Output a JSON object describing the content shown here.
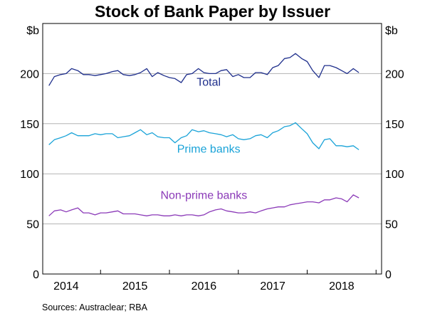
{
  "source": "Sources:   Austraclear; RBA",
  "chart_data": {
    "type": "line",
    "title": "Stock of Bank Paper by Issuer",
    "ylabel_left": "$b",
    "ylabel_right": "$b",
    "ylim": [
      0,
      250
    ],
    "yticks": [
      0,
      50,
      100,
      150,
      200
    ],
    "grid": "horizontal",
    "x_range": [
      2013.66,
      2018.58
    ],
    "xticks": [
      {
        "label": "2014",
        "x": 2014
      },
      {
        "label": "2015",
        "x": 2015
      },
      {
        "label": "2016",
        "x": 2016
      },
      {
        "label": "2017",
        "x": 2017
      },
      {
        "label": "2018",
        "x": 2018
      }
    ],
    "series": [
      {
        "name": "Total",
        "color": "#1f2f8c",
        "x": [
          2013.75,
          2013.83,
          2013.92,
          2014.0,
          2014.08,
          2014.17,
          2014.25,
          2014.33,
          2014.42,
          2014.5,
          2014.58,
          2014.67,
          2014.75,
          2014.83,
          2014.92,
          2015.0,
          2015.08,
          2015.17,
          2015.25,
          2015.33,
          2015.42,
          2015.5,
          2015.58,
          2015.67,
          2015.75,
          2015.83,
          2015.92,
          2016.0,
          2016.08,
          2016.17,
          2016.25,
          2016.33,
          2016.42,
          2016.5,
          2016.58,
          2016.67,
          2016.75,
          2016.83,
          2016.92,
          2017.0,
          2017.08,
          2017.17,
          2017.25,
          2017.33,
          2017.42,
          2017.5,
          2017.58,
          2017.67,
          2017.75,
          2017.83,
          2017.92,
          2018.0,
          2018.08,
          2018.17,
          2018.25
        ],
        "values": [
          188,
          197,
          199,
          200,
          205,
          203,
          199,
          199,
          198,
          199,
          200,
          202,
          203,
          199,
          198,
          199,
          201,
          205,
          197,
          201,
          198,
          196,
          195,
          191,
          199,
          200,
          205,
          201,
          200,
          200,
          203,
          204,
          197,
          199,
          196,
          196,
          201,
          201,
          199,
          206,
          208,
          215,
          216,
          220,
          215,
          212,
          203,
          196,
          208,
          208,
          206,
          203,
          200,
          205,
          201
        ]
      },
      {
        "name": "Prime banks",
        "color": "#1aa3d8",
        "x": [
          2013.75,
          2013.83,
          2013.92,
          2014.0,
          2014.08,
          2014.17,
          2014.25,
          2014.33,
          2014.42,
          2014.5,
          2014.58,
          2014.67,
          2014.75,
          2014.83,
          2014.92,
          2015.0,
          2015.08,
          2015.17,
          2015.25,
          2015.33,
          2015.42,
          2015.5,
          2015.58,
          2015.67,
          2015.75,
          2015.83,
          2015.92,
          2016.0,
          2016.08,
          2016.17,
          2016.25,
          2016.33,
          2016.42,
          2016.5,
          2016.58,
          2016.67,
          2016.75,
          2016.83,
          2016.92,
          2017.0,
          2017.08,
          2017.17,
          2017.25,
          2017.33,
          2017.42,
          2017.5,
          2017.58,
          2017.67,
          2017.75,
          2017.83,
          2017.92,
          2018.0,
          2018.08,
          2018.17,
          2018.25
        ],
        "values": [
          129,
          134,
          136,
          138,
          141,
          138,
          138,
          138,
          140,
          139,
          140,
          140,
          136,
          137,
          138,
          141,
          144,
          139,
          141,
          137,
          136,
          136,
          131,
          136,
          138,
          144,
          142,
          143,
          141,
          140,
          139,
          137,
          139,
          135,
          134,
          135,
          138,
          139,
          136,
          141,
          143,
          147,
          148,
          151,
          145,
          140,
          131,
          125,
          134,
          135,
          128,
          128,
          127,
          128,
          124
        ]
      },
      {
        "name": "Non-prime banks",
        "color": "#8b3ab8",
        "x": [
          2013.75,
          2013.83,
          2013.92,
          2014.0,
          2014.08,
          2014.17,
          2014.25,
          2014.33,
          2014.42,
          2014.5,
          2014.58,
          2014.67,
          2014.75,
          2014.83,
          2014.92,
          2015.0,
          2015.08,
          2015.17,
          2015.25,
          2015.33,
          2015.42,
          2015.5,
          2015.58,
          2015.67,
          2015.75,
          2015.83,
          2015.92,
          2016.0,
          2016.08,
          2016.17,
          2016.25,
          2016.33,
          2016.42,
          2016.5,
          2016.58,
          2016.67,
          2016.75,
          2016.83,
          2016.92,
          2017.0,
          2017.08,
          2017.17,
          2017.25,
          2017.33,
          2017.42,
          2017.5,
          2017.58,
          2017.67,
          2017.75,
          2017.83,
          2017.92,
          2018.0,
          2018.08,
          2018.17,
          2018.25
        ],
        "values": [
          58,
          63,
          64,
          62,
          64,
          66,
          61,
          61,
          59,
          61,
          61,
          62,
          63,
          60,
          60,
          60,
          59,
          58,
          59,
          59,
          58,
          58,
          59,
          58,
          59,
          59,
          58,
          59,
          62,
          64,
          65,
          63,
          62,
          61,
          61,
          62,
          61,
          63,
          65,
          66,
          67,
          67,
          69,
          70,
          71,
          72,
          72,
          71,
          74,
          74,
          76,
          75,
          72,
          79,
          76
        ]
      }
    ],
    "annotations": [
      {
        "text": "Total",
        "series": "Total",
        "x": 2016.07,
        "y": 188
      },
      {
        "text": "Prime banks",
        "series": "Prime banks",
        "x": 2016.07,
        "y": 121
      },
      {
        "text": "Non-prime banks",
        "series": "Non-prime banks",
        "x": 2016.0,
        "y": 75
      }
    ]
  }
}
